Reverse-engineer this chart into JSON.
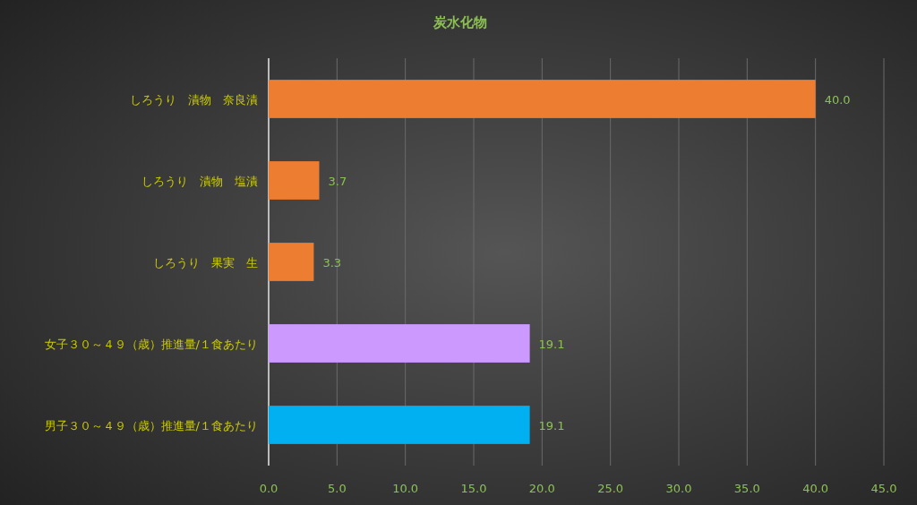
{
  "chart_data": {
    "type": "bar",
    "orientation": "horizontal",
    "title": "炭水化物",
    "categories": [
      "しろうり　漬物　奈良漬",
      "しろうり　漬物　塩漬",
      "しろうり　果実　生",
      "女子３０～４９（歳）推進量/１食あたり",
      "男子３０～４９（歳）推進量/１食あたり"
    ],
    "values": [
      40.0,
      3.7,
      3.3,
      19.1,
      19.1
    ],
    "value_labels": [
      "40.0",
      "3.7",
      "3.3",
      "19.1",
      "19.1"
    ],
    "colors": [
      "#ed7d31",
      "#ed7d31",
      "#ed7d31",
      "#cc99ff",
      "#00b0f0"
    ],
    "xlim": [
      0,
      45
    ],
    "xticks": [
      {
        "value": 0,
        "label": "0.0"
      },
      {
        "value": 5,
        "label": "5.0"
      },
      {
        "value": 10,
        "label": "10.0"
      },
      {
        "value": 15,
        "label": "15.0"
      },
      {
        "value": 20,
        "label": "20.0"
      },
      {
        "value": 25,
        "label": "25.0"
      },
      {
        "value": 30,
        "label": "30.0"
      },
      {
        "value": 35,
        "label": "35.0"
      },
      {
        "value": 40,
        "label": "40.0"
      },
      {
        "value": 45,
        "label": "45.0"
      }
    ],
    "grid": "x"
  }
}
